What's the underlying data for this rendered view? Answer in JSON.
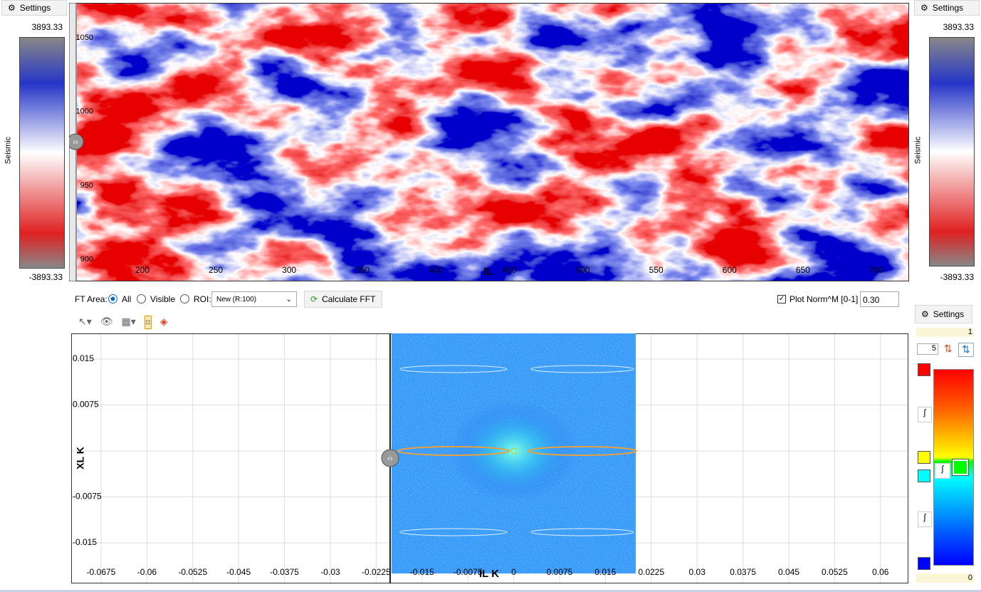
{
  "left_panel": {
    "settings": "Settings",
    "max": "3893.33",
    "min": "-3893.33",
    "label": "Seismic"
  },
  "right_panel": {
    "settings": "Settings",
    "max": "3893.33",
    "min": "-3893.33",
    "label": "Seismic"
  },
  "seismic_view": {
    "y_ticks": [
      "1050",
      "1000",
      "950",
      "900"
    ],
    "x_ticks": [
      "200",
      "250",
      "300",
      "350",
      "400",
      "450",
      "500",
      "550",
      "600",
      "650",
      "700"
    ],
    "x_label": "IL"
  },
  "fft_controls": {
    "ft_area_label": "FT Area:",
    "options": [
      "All",
      "Visible",
      "ROI:"
    ],
    "roi_value": "New (R:100)",
    "calculate": "Calculate FFT",
    "plot_norm": "Plot Norm^M [0-1]",
    "norm_value": "0.30"
  },
  "fft_plot": {
    "y_ticks": [
      "0.015",
      "0.0075",
      "-0.0075",
      "-0.015"
    ],
    "x_ticks": [
      "-0.0675",
      "-0.06",
      "-0.0525",
      "-0.045",
      "-0.0375",
      "-0.03",
      "-0.0225",
      "-0.015",
      "-0.0075",
      "0",
      "0.0075",
      "0.015",
      "0.0225",
      "0.03",
      "0.0375",
      "0.045",
      "0.0525",
      "0.06"
    ],
    "y_label": "XL K",
    "x_label": "IL K"
  },
  "colorbar_panel": {
    "settings": "Settings",
    "max": "1",
    "steps": "5",
    "min": "0"
  }
}
